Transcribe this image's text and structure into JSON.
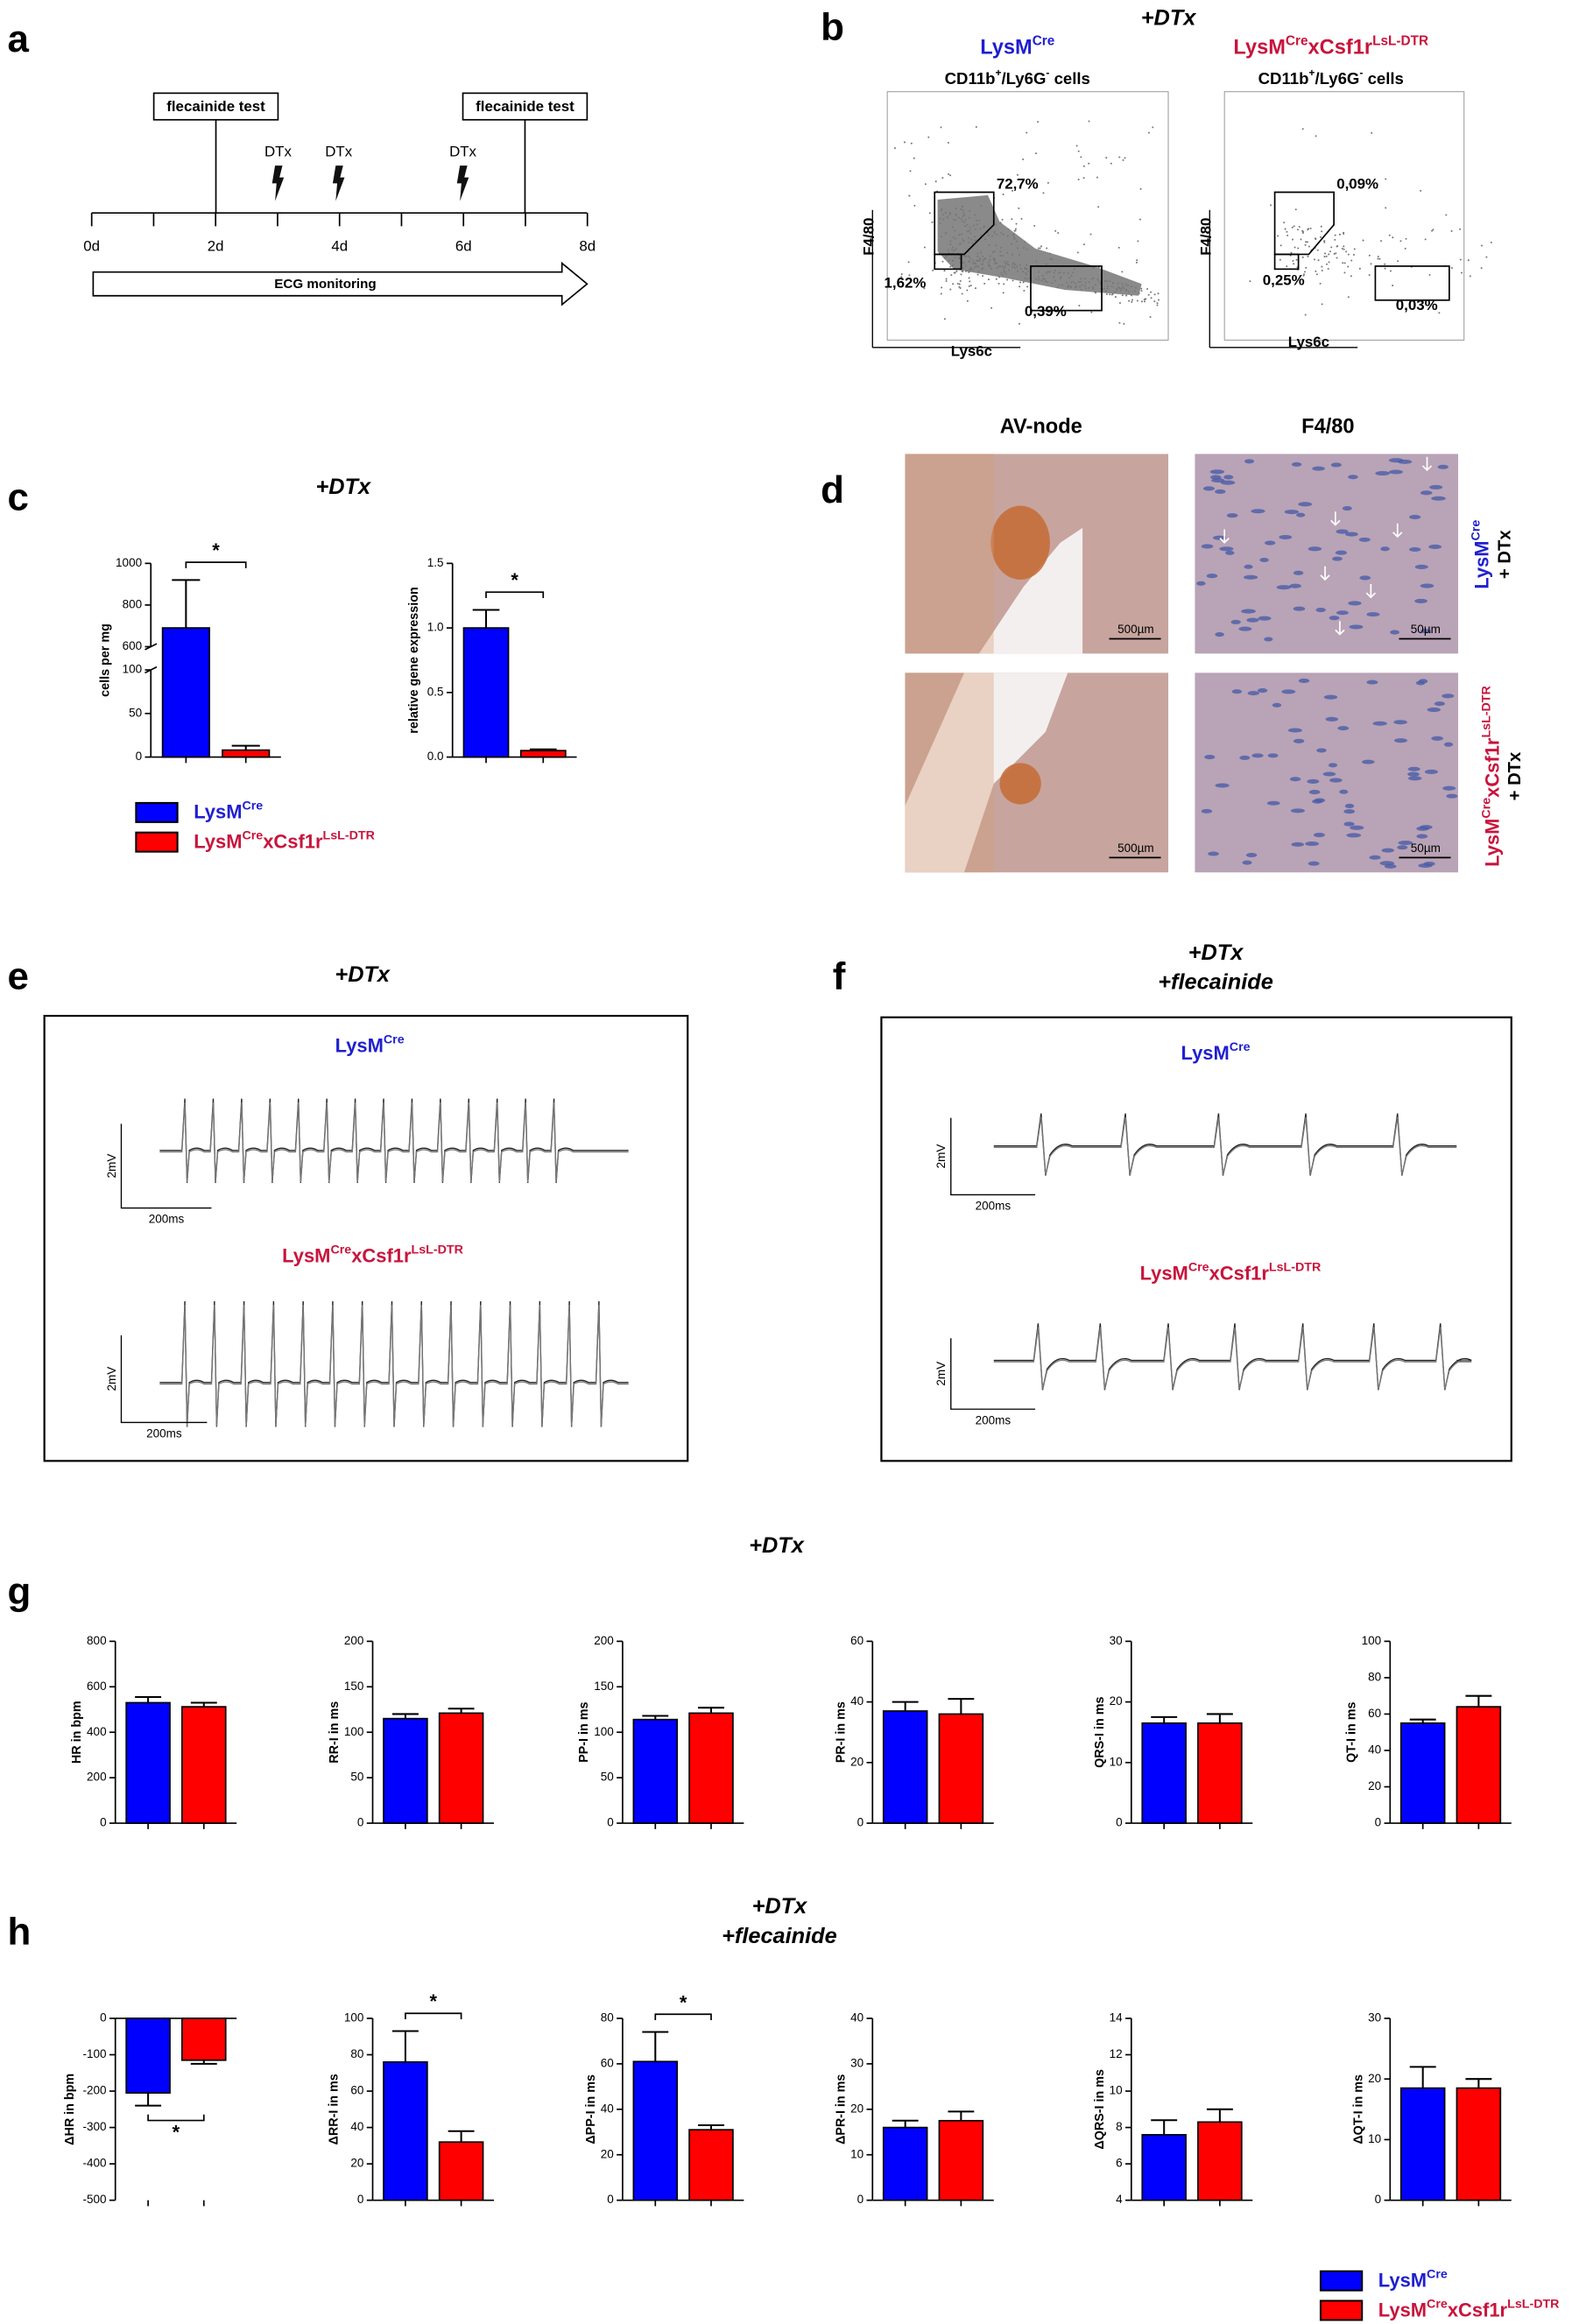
{
  "panel_labels": [
    "a",
    "b",
    "c",
    "d",
    "e",
    "f",
    "g",
    "h"
  ],
  "timeline": {
    "tests": [
      "flecainide test",
      "flecainide test"
    ],
    "injections": [
      "DTx",
      "DTx",
      "DTx"
    ],
    "ticks": [
      "0d",
      "2d",
      "4d",
      "6d",
      "8d"
    ],
    "monitoring": "ECG monitoring"
  },
  "flow": {
    "title": "+DTx",
    "plots": [
      {
        "genotype": [
          "LysM",
          "Cre"
        ],
        "population": [
          "CD11b",
          "+",
          "/Ly6G",
          "-",
          " cells"
        ],
        "y_label": "F4/80",
        "x_label": "Lys6c",
        "gates": [
          "72,7%",
          "1,62%",
          "0,39%"
        ]
      },
      {
        "genotype": [
          "LysM",
          "Cre",
          "xCsf1r",
          "LsL-DTR"
        ],
        "population": [
          "CD11b",
          "+",
          "/Ly6G",
          "-",
          " cells"
        ],
        "y_label": "F4/80",
        "x_label": "Lys6c",
        "gates": [
          "0,09%",
          "0,25%",
          "0,03%"
        ]
      }
    ]
  },
  "bar_titles": {
    "c": [
      "+DTx"
    ],
    "g": [
      "+DTx"
    ],
    "h": [
      "+DTx",
      "+flecainide"
    ]
  },
  "histology": {
    "columns": [
      "AV-node",
      "F4/80"
    ],
    "rows": [
      {
        "genotype": [
          "LysM",
          "Cre"
        ],
        "treatment": "+ DTx",
        "scale_bars": [
          "500µm",
          "50µm"
        ]
      },
      {
        "genotype": [
          "LysM",
          "Cre",
          "xCsf1r",
          "LsL-DTR"
        ],
        "treatment": "+ DTx",
        "scale_bars": [
          "500µm",
          "50µm"
        ]
      }
    ]
  },
  "ecg": [
    {
      "title": [
        "+DTx"
      ],
      "traces": [
        {
          "genotype": [
            "LysM",
            "Cre"
          ],
          "voltage": "2mV",
          "time": "200ms"
        },
        {
          "genotype": [
            "LysM",
            "Cre",
            "xCsf1r",
            "LsL-DTR"
          ],
          "voltage": "2mV",
          "time": "200ms"
        }
      ]
    },
    {
      "title": [
        "+DTx",
        "+flecainide"
      ],
      "traces": [
        {
          "genotype": [
            "LysM",
            "Cre"
          ],
          "voltage": "2mV",
          "time": "200ms"
        },
        {
          "genotype": [
            "LysM",
            "Cre",
            "xCsf1r",
            "LsL-DTR"
          ],
          "voltage": "2mV",
          "time": "200ms"
        }
      ]
    }
  ],
  "chart_data": [
    {
      "type": "bar",
      "y_label": "cells per mg",
      "categories": [
        null
      ],
      "series": [
        {
          "name": [
            "LysM",
            "Cre"
          ],
          "color": "#0000ff",
          "values": [
            690
          ],
          "errors": [
            230
          ]
        },
        {
          "name": [
            "LysM",
            "Cre",
            "xCsf1r",
            "LsL-DTR"
          ],
          "color": "#ff0000",
          "values": [
            8
          ],
          "errors": [
            5
          ]
        }
      ],
      "ylim": [
        0,
        1000
      ],
      "ybreak": [
        100,
        600
      ],
      "yticks": [
        0,
        50,
        100,
        600,
        800,
        1000
      ],
      "annotation": "*",
      "legend": true
    },
    {
      "type": "bar",
      "y_label": "relative gene expression",
      "categories": [
        null
      ],
      "series": [
        {
          "name": [
            "LysM",
            "Cre"
          ],
          "color": "#0000ff",
          "values": [
            1.0
          ],
          "errors": [
            0.14
          ]
        },
        {
          "name": [
            "LysM",
            "Cre",
            "xCsf1r",
            "LsL-DTR"
          ],
          "color": "#ff0000",
          "values": [
            0.05
          ],
          "errors": [
            0.01
          ]
        }
      ],
      "ylim": [
        0,
        1.5
      ],
      "yticks": [
        {
          "value": 0,
          "label": "0.0"
        },
        {
          "value": 0.5,
          "label": "0.5"
        },
        {
          "value": 1,
          "label": "1.0"
        },
        {
          "value": 1.5,
          "label": "1.5"
        }
      ],
      "annotation": "*"
    },
    {
      "type": "bar",
      "y_label": "HR in bpm",
      "categories": [
        null
      ],
      "series": [
        {
          "name": [
            "LysM",
            "Cre"
          ],
          "color": "#0000ff",
          "values": [
            530
          ],
          "errors": [
            25
          ]
        },
        {
          "name": [
            "LysM",
            "Cre",
            "xCsf1r",
            "LsL-DTR"
          ],
          "color": "#ff0000",
          "values": [
            512
          ],
          "errors": [
            18
          ]
        }
      ],
      "ylim": [
        0,
        800
      ],
      "yticks": [
        0,
        200,
        400,
        600,
        800
      ]
    },
    {
      "type": "bar",
      "y_label": "RR-I in ms",
      "categories": [
        null
      ],
      "series": [
        {
          "name": [
            "LysM",
            "Cre"
          ],
          "color": "#0000ff",
          "values": [
            115
          ],
          "errors": [
            5
          ]
        },
        {
          "name": [
            "LysM",
            "Cre",
            "xCsf1r",
            "LsL-DTR"
          ],
          "color": "#ff0000",
          "values": [
            121
          ],
          "errors": [
            5
          ]
        }
      ],
      "ylim": [
        0,
        200
      ],
      "yticks": [
        0,
        50,
        100,
        150,
        200
      ]
    },
    {
      "type": "bar",
      "y_label": "PP-I in ms",
      "categories": [
        null
      ],
      "series": [
        {
          "name": [
            "LysM",
            "Cre"
          ],
          "color": "#0000ff",
          "values": [
            114
          ],
          "errors": [
            4
          ]
        },
        {
          "name": [
            "LysM",
            "Cre",
            "xCsf1r",
            "LsL-DTR"
          ],
          "color": "#ff0000",
          "values": [
            121
          ],
          "errors": [
            6
          ]
        }
      ],
      "ylim": [
        0,
        200
      ],
      "yticks": [
        0,
        50,
        100,
        150,
        200
      ]
    },
    {
      "type": "bar",
      "y_label": "PR-I in ms",
      "categories": [
        null
      ],
      "series": [
        {
          "name": [
            "LysM",
            "Cre"
          ],
          "color": "#0000ff",
          "values": [
            37
          ],
          "errors": [
            3
          ]
        },
        {
          "name": [
            "LysM",
            "Cre",
            "xCsf1r",
            "LsL-DTR"
          ],
          "color": "#ff0000",
          "values": [
            36
          ],
          "errors": [
            5
          ]
        }
      ],
      "ylim": [
        0,
        60
      ],
      "yticks": [
        0,
        20,
        40,
        60
      ]
    },
    {
      "type": "bar",
      "y_label": "QRS-I in ms",
      "categories": [
        null
      ],
      "series": [
        {
          "name": [
            "LysM",
            "Cre"
          ],
          "color": "#0000ff",
          "values": [
            16.5
          ],
          "errors": [
            1
          ]
        },
        {
          "name": [
            "LysM",
            "Cre",
            "xCsf1r",
            "LsL-DTR"
          ],
          "color": "#ff0000",
          "values": [
            16.5
          ],
          "errors": [
            1.5
          ]
        }
      ],
      "ylim": [
        0,
        30
      ],
      "yticks": [
        0,
        10,
        20,
        30
      ]
    },
    {
      "type": "bar",
      "y_label": "QT-I in ms",
      "categories": [
        null
      ],
      "series": [
        {
          "name": [
            "LysM",
            "Cre"
          ],
          "color": "#0000ff",
          "values": [
            55
          ],
          "errors": [
            2
          ]
        },
        {
          "name": [
            "LysM",
            "Cre",
            "xCsf1r",
            "LsL-DTR"
          ],
          "color": "#ff0000",
          "values": [
            64
          ],
          "errors": [
            6
          ]
        }
      ],
      "ylim": [
        0,
        100
      ],
      "yticks": [
        0,
        20,
        40,
        60,
        80,
        100
      ]
    },
    {
      "type": "bar",
      "y_label": "ΔHR in bpm",
      "categories": [
        null
      ],
      "series": [
        {
          "name": [
            "LysM",
            "Cre"
          ],
          "color": "#0000ff",
          "values": [
            -205
          ],
          "errors": [
            35
          ]
        },
        {
          "name": [
            "LysM",
            "Cre",
            "xCsf1r",
            "LsL-DTR"
          ],
          "color": "#ff0000",
          "values": [
            -115
          ],
          "errors": [
            10
          ]
        }
      ],
      "ylim": [
        -500,
        0
      ],
      "yticks": [
        0,
        -100,
        -200,
        -300,
        -400,
        -500
      ],
      "annotation": "*"
    },
    {
      "type": "bar",
      "y_label": "ΔRR-I in ms",
      "categories": [
        null
      ],
      "series": [
        {
          "name": [
            "LysM",
            "Cre"
          ],
          "color": "#0000ff",
          "values": [
            76
          ],
          "errors": [
            17
          ]
        },
        {
          "name": [
            "LysM",
            "Cre",
            "xCsf1r",
            "LsL-DTR"
          ],
          "color": "#ff0000",
          "values": [
            32
          ],
          "errors": [
            6
          ]
        }
      ],
      "ylim": [
        0,
        100
      ],
      "yticks": [
        0,
        20,
        40,
        60,
        80,
        100
      ],
      "annotation": "*"
    },
    {
      "type": "bar",
      "y_label": "ΔPP-I in ms",
      "categories": [
        null
      ],
      "series": [
        {
          "name": [
            "LysM",
            "Cre"
          ],
          "color": "#0000ff",
          "values": [
            61
          ],
          "errors": [
            13
          ]
        },
        {
          "name": [
            "LysM",
            "Cre",
            "xCsf1r",
            "LsL-DTR"
          ],
          "color": "#ff0000",
          "values": [
            31
          ],
          "errors": [
            2
          ]
        }
      ],
      "ylim": [
        0,
        80
      ],
      "yticks": [
        0,
        20,
        40,
        60,
        80
      ],
      "annotation": "*"
    },
    {
      "type": "bar",
      "y_label": "ΔPR-I in ms",
      "categories": [
        null
      ],
      "series": [
        {
          "name": [
            "LysM",
            "Cre"
          ],
          "color": "#0000ff",
          "values": [
            16
          ],
          "errors": [
            1.5
          ]
        },
        {
          "name": [
            "LysM",
            "Cre",
            "xCsf1r",
            "LsL-DTR"
          ],
          "color": "#ff0000",
          "values": [
            17.5
          ],
          "errors": [
            2
          ]
        }
      ],
      "ylim": [
        0,
        40
      ],
      "yticks": [
        0,
        10,
        20,
        30,
        40
      ]
    },
    {
      "type": "bar",
      "y_label": "ΔQRS-I in ms",
      "categories": [
        null
      ],
      "series": [
        {
          "name": [
            "LysM",
            "Cre"
          ],
          "color": "#0000ff",
          "values": [
            7.6
          ],
          "errors": [
            0.8
          ]
        },
        {
          "name": [
            "LysM",
            "Cre",
            "xCsf1r",
            "LsL-DTR"
          ],
          "color": "#ff0000",
          "values": [
            8.3
          ],
          "errors": [
            0.7
          ]
        }
      ],
      "ylim": [
        4,
        14
      ],
      "yticks": [
        4,
        6,
        8,
        10,
        12,
        14
      ]
    },
    {
      "type": "bar",
      "y_label": "ΔQT-I in ms",
      "categories": [
        null
      ],
      "series": [
        {
          "name": [
            "LysM",
            "Cre"
          ],
          "color": "#0000ff",
          "values": [
            18.5
          ],
          "errors": [
            3.5
          ]
        },
        {
          "name": [
            "LysM",
            "Cre",
            "xCsf1r",
            "LsL-DTR"
          ],
          "color": "#ff0000",
          "values": [
            18.5
          ],
          "errors": [
            1.5
          ]
        }
      ],
      "ylim": [
        0,
        30
      ],
      "yticks": [
        0,
        10,
        20,
        30
      ],
      "legend": true
    }
  ]
}
